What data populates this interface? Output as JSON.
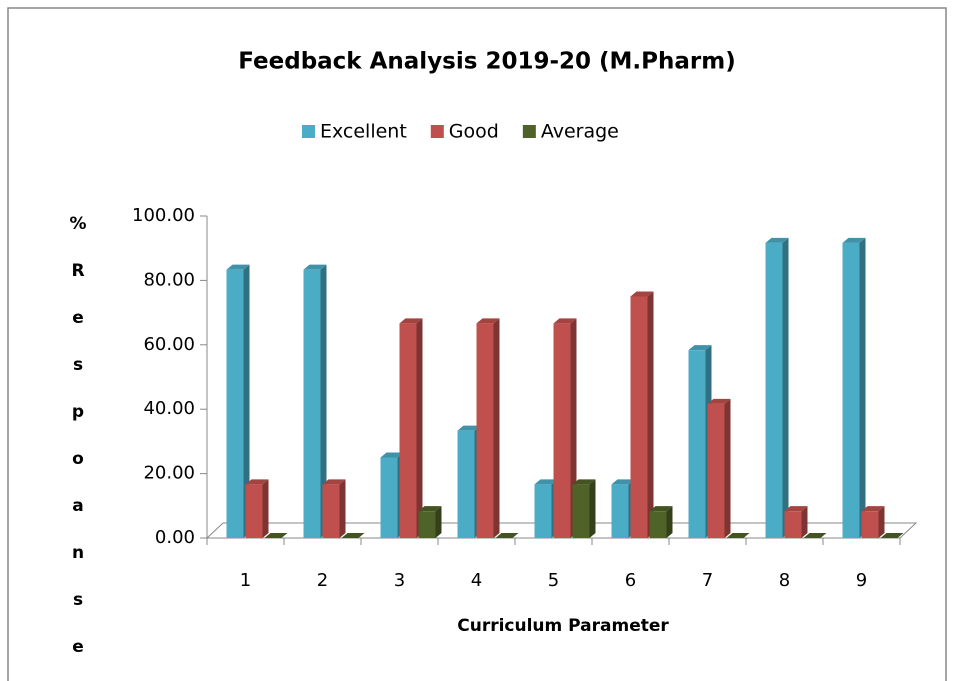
{
  "chart_data": {
    "type": "bar",
    "title": "Feedback Analysis 2019-20 (M.Pharm)",
    "x_label": "Curriculum  Parameter",
    "y_label": "%Respoanse",
    "categories": [
      "1",
      "2",
      "3",
      "4",
      "5",
      "6",
      "7",
      "8",
      "9"
    ],
    "series": [
      {
        "name": "Excellent",
        "color": "#4bacc6",
        "values": [
          83.33,
          83.33,
          25,
          33.33,
          16.67,
          16.67,
          58.33,
          91.67,
          91.67
        ]
      },
      {
        "name": "Good",
        "color": "#c0504d",
        "values": [
          16.67,
          16.67,
          66.67,
          66.67,
          66.67,
          75,
          41.67,
          8.33,
          8.33
        ]
      },
      {
        "name": "Average",
        "color": "#4f6228",
        "values": [
          0,
          0,
          8.33,
          0,
          16.67,
          8.33,
          0,
          0,
          0
        ]
      }
    ],
    "ylim": [
      0,
      100
    ],
    "yticks": [
      {
        "value": 0,
        "label": "0.00"
      },
      {
        "value": 20,
        "label": "20.00"
      },
      {
        "value": 40,
        "label": "40.00"
      },
      {
        "value": 60,
        "label": "60.00"
      },
      {
        "value": 80,
        "label": "80.00"
      },
      {
        "value": 100,
        "label": "100.00"
      }
    ],
    "legend": "top"
  }
}
